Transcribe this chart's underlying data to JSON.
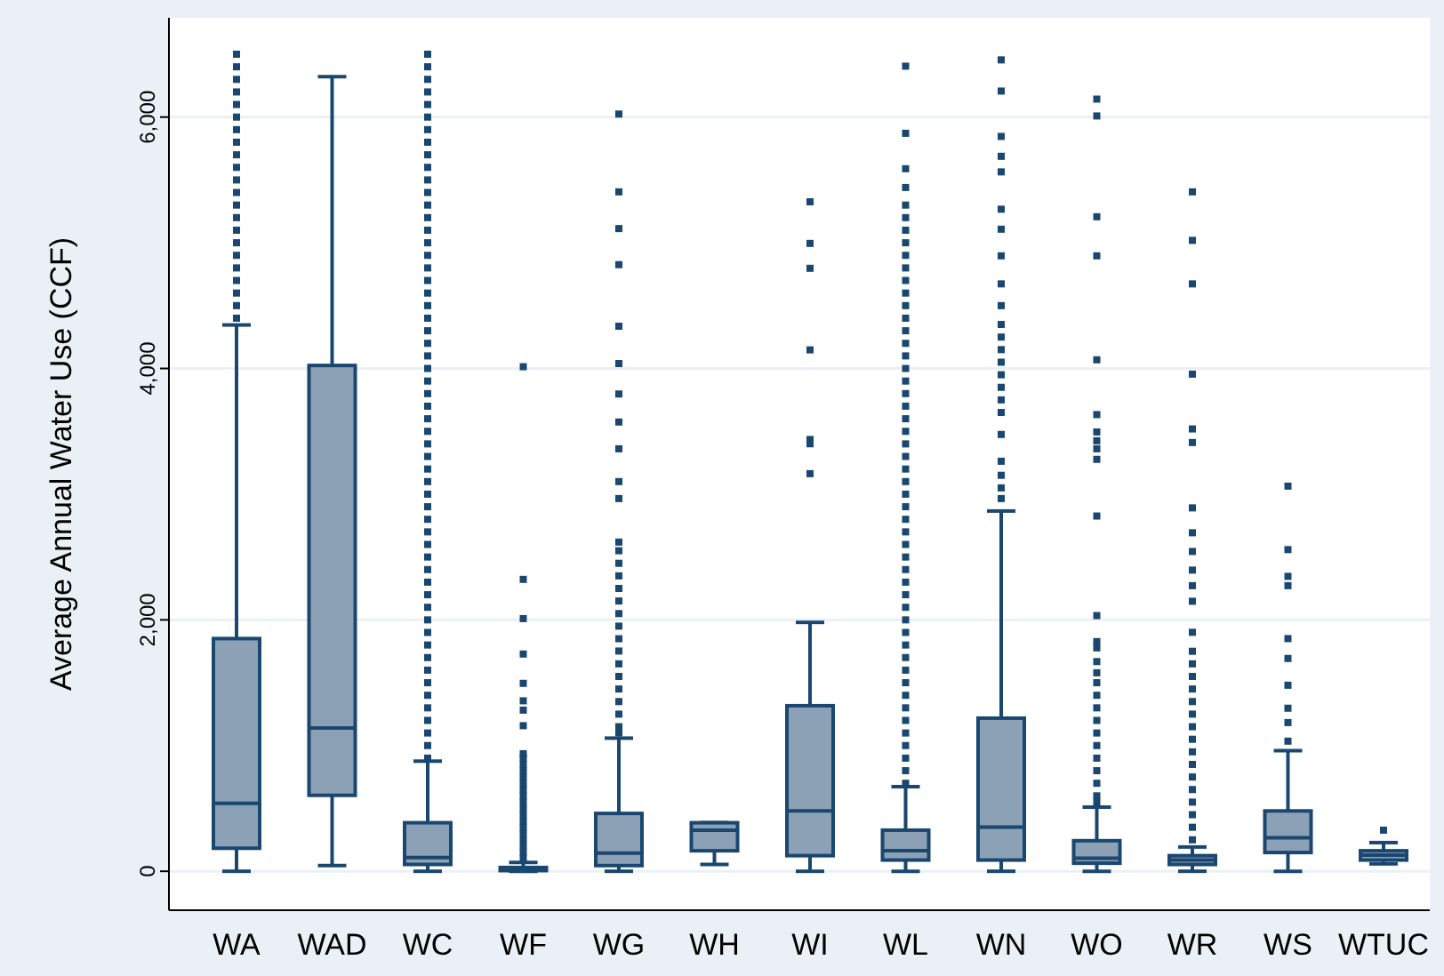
{
  "chart_data": {
    "type": "box",
    "ylabel": "Average Annual Water Use (CCF)",
    "categories": [
      "WA",
      "WAD",
      "WC",
      "WF",
      "WG",
      "WH",
      "WI",
      "WL",
      "WN",
      "WO",
      "WR",
      "WS",
      "WTUC"
    ],
    "color": "#8ca1b5",
    "boxes": [
      {
        "low": 0,
        "q1": 183,
        "median": 540,
        "q3": 1851,
        "high": 4346,
        "outliers": [
          4400,
          4500,
          4600,
          4700,
          4800,
          4900,
          5000,
          5100,
          5200,
          5300,
          5400,
          5500,
          5600,
          5700,
          5800,
          5900,
          6000,
          6100,
          6200,
          6300,
          6400,
          6500
        ]
      },
      {
        "low": 45,
        "q1": 604,
        "median": 1139,
        "q3": 4024,
        "high": 6321
      },
      {
        "low": 0,
        "q1": 54,
        "median": 109,
        "q3": 386,
        "high": 876,
        "outliers": [
          900,
          1000,
          1100,
          1200,
          1300,
          1400,
          1500,
          1600,
          1700,
          1800,
          1900,
          2000,
          2100,
          2200,
          2300,
          2400,
          2500,
          2600,
          2700,
          2800,
          2900,
          3000,
          3100,
          3200,
          3300,
          3400,
          3500,
          3600,
          3700,
          3800,
          3900,
          4000,
          4100,
          4200,
          4300,
          4400,
          4500,
          4600,
          4700,
          4800,
          4900,
          5000,
          5100,
          5200,
          5300,
          5400,
          5500,
          5600,
          5700,
          5800,
          5900,
          6000,
          6100,
          6200,
          6300,
          6400,
          6500
        ]
      },
      {
        "low": 0,
        "q1": 5,
        "median": 15,
        "q3": 30,
        "high": 70,
        "outliers": [
          100,
          150,
          200,
          250,
          300,
          350,
          400,
          450,
          500,
          550,
          600,
          650,
          700,
          750,
          800,
          850,
          900,
          935,
          1158,
          1282,
          1356,
          1495,
          1728,
          2010,
          2322,
          4014
        ]
      },
      {
        "low": 0,
        "q1": 45,
        "median": 144,
        "q3": 460,
        "high": 1059,
        "outliers": [
          1100,
          1150,
          1250,
          1350,
          1450,
          1550,
          1650,
          1752,
          1850,
          1950,
          2050,
          2150,
          2250,
          2350,
          2450,
          2550,
          2619,
          2965,
          3100,
          3361,
          3574,
          3797,
          4039,
          4336,
          4826,
          5113,
          5405,
          6024
        ]
      },
      {
        "low": 54,
        "q1": 163,
        "median": 327,
        "q3": 386,
        "high": 386
      },
      {
        "low": 0,
        "q1": 124,
        "median": 480,
        "q3": 1317,
        "high": 1980,
        "outliers": [
          3163,
          3401,
          3435,
          4148,
          4797,
          4995,
          5326
        ]
      },
      {
        "low": 0,
        "q1": 89,
        "median": 163,
        "q3": 327,
        "high": 673,
        "outliers": [
          700,
          800,
          900,
          1000,
          1100,
          1200,
          1300,
          1400,
          1500,
          1600,
          1700,
          1800,
          1900,
          2000,
          2100,
          2200,
          2300,
          2400,
          2500,
          2600,
          2700,
          2800,
          2900,
          3000,
          3100,
          3200,
          3300,
          3400,
          3500,
          3600,
          3700,
          3800,
          3900,
          4000,
          4100,
          4200,
          4300,
          4400,
          4500,
          4600,
          4700,
          4800,
          4900,
          5000,
          5100,
          5200,
          5300,
          5440,
          5589,
          5871,
          6405
        ]
      },
      {
        "low": 0,
        "q1": 89,
        "median": 351,
        "q3": 1218,
        "high": 2866,
        "outliers": [
          2965,
          3050,
          3150,
          3262,
          3475,
          3650,
          3750,
          3850,
          3950,
          4050,
          4150,
          4250,
          4350,
          4500,
          4673,
          4896,
          5108,
          5267,
          5564,
          5688,
          5846,
          6207,
          6455
        ]
      },
      {
        "low": 0,
        "q1": 64,
        "median": 104,
        "q3": 243,
        "high": 510,
        "outliers": [
          550,
          600,
          700,
          800,
          900,
          1000,
          1100,
          1200,
          1300,
          1400,
          1500,
          1579,
          1668,
          1777,
          1827,
          2034,
          2826,
          3277,
          3361,
          3425,
          3495,
          3633,
          4069,
          4896,
          5207,
          6009,
          6143
        ]
      },
      {
        "low": 0,
        "q1": 54,
        "median": 89,
        "q3": 124,
        "high": 193,
        "outliers": [
          250,
          350,
          450,
          550,
          650,
          750,
          850,
          950,
          1050,
          1150,
          1250,
          1350,
          1450,
          1550,
          1650,
          1750,
          1901,
          2148,
          2272,
          2396,
          2544,
          2693,
          2891,
          3411,
          3519,
          3955,
          4673,
          5019,
          5405
        ]
      },
      {
        "low": 0,
        "q1": 149,
        "median": 267,
        "q3": 480,
        "high": 960,
        "outliers": [
          1035,
          1183,
          1297,
          1480,
          1693,
          1851,
          2272,
          2346,
          2559,
          3064
        ]
      },
      {
        "low": 59,
        "q1": 89,
        "median": 129,
        "q3": 163,
        "high": 228,
        "outliers": [
          327
        ]
      }
    ],
    "ylim": [
      -310,
      6790
    ],
    "yticks": [
      {
        "value": 0,
        "label": "0"
      },
      {
        "value": 2000,
        "label": "2,000"
      },
      {
        "value": 4000,
        "label": "4,000"
      },
      {
        "value": 6000,
        "label": "6,000"
      }
    ],
    "grid": "y",
    "marker": "square"
  }
}
